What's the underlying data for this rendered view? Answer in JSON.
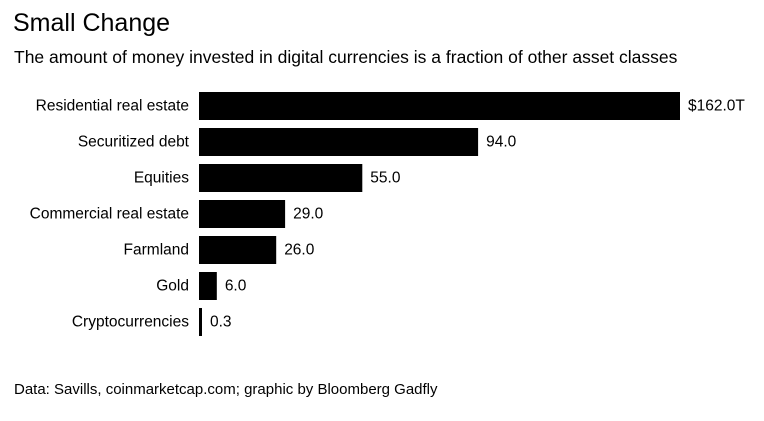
{
  "chart_data": {
    "type": "bar",
    "orientation": "horizontal",
    "title": "Small Change",
    "subtitle": "The amount of money invested in digital currencies is a fraction of other asset classes",
    "categories": [
      "Residential real estate",
      "Securitized debt",
      "Equities",
      "Commercial real estate",
      "Farmland",
      "Gold",
      "Cryptocurrencies"
    ],
    "values": [
      162.0,
      94.0,
      55.0,
      29.0,
      26.0,
      6.0,
      0.3
    ],
    "value_labels": [
      "$162.0T",
      "94.0",
      "55.0",
      "29.0",
      "26.0",
      "6.0",
      "0.3"
    ],
    "unit": "trillion USD",
    "xlim": [
      0,
      162
    ],
    "grid": false,
    "legend": "none",
    "source": "Data: Savills, coinmarketcap.com; graphic by Bloomberg Gadfly",
    "bar_color": "#000000"
  }
}
